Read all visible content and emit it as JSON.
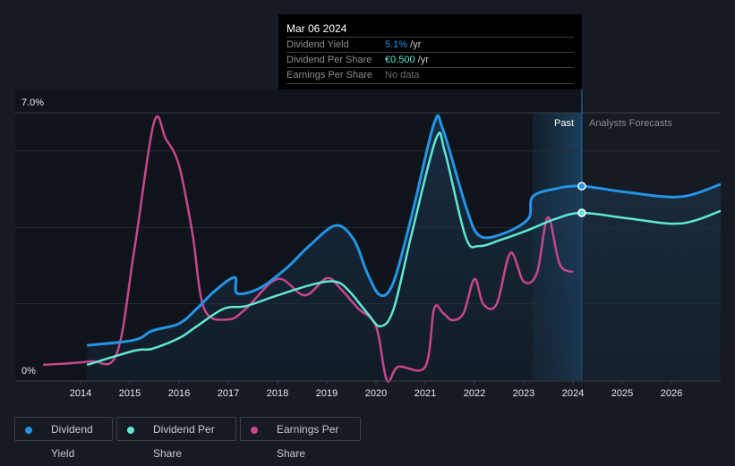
{
  "tooltip": {
    "date": "Mar 06 2024",
    "rows": [
      {
        "label": "Dividend Yield",
        "value": "5.1%",
        "unit": " /yr"
      },
      {
        "label": "Dividend Per Share",
        "value": "€0.500",
        "unit": " /yr"
      },
      {
        "label": "Earnings Per Share",
        "value": "No data",
        "unit": ""
      }
    ]
  },
  "labels": {
    "past": "Past",
    "forecast": "Analysts Forecasts"
  },
  "legend": [
    {
      "label": "Dividend Yield",
      "color": "#2394e6"
    },
    {
      "label": "Dividend Per Share",
      "color": "#5ee8d3"
    },
    {
      "label": "Earnings Per Share",
      "color": "#c7468b"
    }
  ],
  "chart_data": {
    "type": "line",
    "title": "",
    "ylabel": "Dividend Yield",
    "ylim": [
      0,
      7
    ],
    "xlim": [
      2012.6,
      2027.0
    ],
    "ytick_labels": [
      "0%",
      "7.0%"
    ],
    "xticks": [
      2014,
      2015,
      2016,
      2017,
      2018,
      2019,
      2020,
      2021,
      2022,
      2023,
      2024,
      2025,
      2026
    ],
    "past_region": [
      2023.18,
      2024.18
    ],
    "series": [
      {
        "name": "Dividend Yield",
        "color": "#2394e6",
        "points": [
          [
            2014.13,
            0.91
          ],
          [
            2015.09,
            1.05
          ],
          [
            2015.45,
            1.29
          ],
          [
            2016.0,
            1.48
          ],
          [
            2016.36,
            1.87
          ],
          [
            2016.73,
            2.34
          ],
          [
            2017.13,
            2.69
          ],
          [
            2017.18,
            2.27
          ],
          [
            2017.64,
            2.41
          ],
          [
            2018.18,
            2.93
          ],
          [
            2018.64,
            3.51
          ],
          [
            2019.18,
            4.05
          ],
          [
            2019.55,
            3.68
          ],
          [
            2019.82,
            2.81
          ],
          [
            2020.09,
            2.22
          ],
          [
            2020.36,
            2.58
          ],
          [
            2020.73,
            4.33
          ],
          [
            2021.18,
            6.72
          ],
          [
            2021.36,
            6.56
          ],
          [
            2021.82,
            4.57
          ],
          [
            2022.09,
            3.79
          ],
          [
            2022.55,
            3.82
          ],
          [
            2023.09,
            4.22
          ],
          [
            2023.18,
            4.8
          ],
          [
            2023.64,
            5.01
          ],
          [
            2024.18,
            5.08
          ],
          [
            2025.09,
            4.92
          ],
          [
            2026.18,
            4.8
          ],
          [
            2027.0,
            5.13
          ]
        ]
      },
      {
        "name": "Dividend Per Share",
        "color": "#5ee8d3",
        "points": [
          [
            2014.13,
            0.4
          ],
          [
            2015.09,
            0.77
          ],
          [
            2015.45,
            0.82
          ],
          [
            2016.0,
            1.1
          ],
          [
            2016.36,
            1.41
          ],
          [
            2016.91,
            1.87
          ],
          [
            2017.36,
            1.94
          ],
          [
            2018.0,
            2.22
          ],
          [
            2018.73,
            2.51
          ],
          [
            2019.18,
            2.58
          ],
          [
            2019.45,
            2.34
          ],
          [
            2019.82,
            1.76
          ],
          [
            2020.09,
            1.41
          ],
          [
            2020.36,
            1.87
          ],
          [
            2020.73,
            3.86
          ],
          [
            2021.22,
            6.32
          ],
          [
            2021.4,
            5.97
          ],
          [
            2021.82,
            3.75
          ],
          [
            2022.09,
            3.51
          ],
          [
            2022.55,
            3.68
          ],
          [
            2023.09,
            3.93
          ],
          [
            2023.64,
            4.22
          ],
          [
            2024.18,
            4.38
          ],
          [
            2025.09,
            4.24
          ],
          [
            2026.18,
            4.1
          ],
          [
            2027.0,
            4.43
          ]
        ]
      },
      {
        "name": "Earnings Per Share",
        "color": "#c7468b",
        "points": [
          [
            2013.24,
            0.4
          ],
          [
            2014.18,
            0.49
          ],
          [
            2014.73,
            0.68
          ],
          [
            2015.09,
            3.4
          ],
          [
            2015.49,
            6.74
          ],
          [
            2015.73,
            6.32
          ],
          [
            2016.0,
            5.62
          ],
          [
            2016.27,
            3.86
          ],
          [
            2016.51,
            1.87
          ],
          [
            2017.0,
            1.59
          ],
          [
            2017.36,
            1.87
          ],
          [
            2018.0,
            2.65
          ],
          [
            2018.55,
            2.22
          ],
          [
            2019.0,
            2.67
          ],
          [
            2019.27,
            2.41
          ],
          [
            2019.64,
            1.87
          ],
          [
            2020.0,
            1.41
          ],
          [
            2020.22,
            0.0
          ],
          [
            2020.45,
            0.35
          ],
          [
            2021.0,
            0.35
          ],
          [
            2021.18,
            1.87
          ],
          [
            2021.36,
            1.76
          ],
          [
            2021.55,
            1.57
          ],
          [
            2021.78,
            1.76
          ],
          [
            2022.0,
            2.65
          ],
          [
            2022.18,
            1.99
          ],
          [
            2022.45,
            1.99
          ],
          [
            2022.73,
            3.33
          ],
          [
            2023.0,
            2.58
          ],
          [
            2023.27,
            2.81
          ],
          [
            2023.49,
            4.26
          ],
          [
            2023.73,
            3.04
          ],
          [
            2024.0,
            2.83
          ]
        ]
      }
    ],
    "highlight_x": 2024.18
  }
}
